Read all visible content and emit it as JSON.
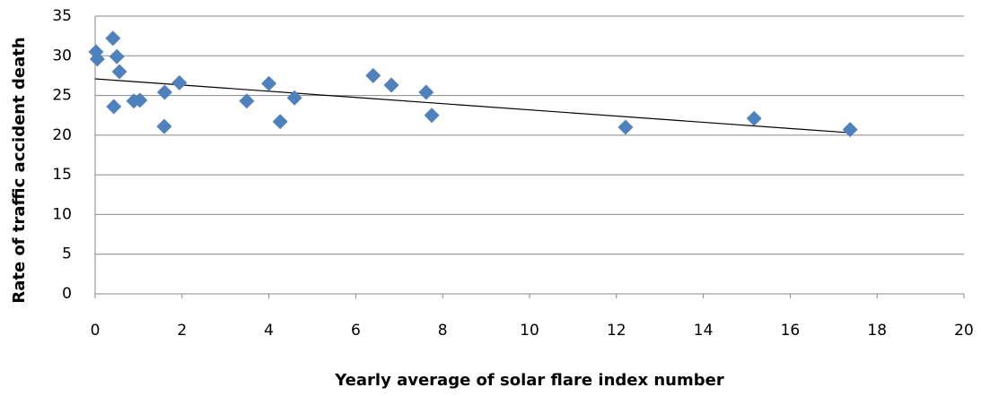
{
  "chart_data": {
    "type": "scatter",
    "x_label": "Yearly average of solar flare index number",
    "y_label": "Rate of traffic accident death",
    "series": [
      {
        "color": "#4f81bd",
        "x": [
          0.02,
          0.05,
          0.41,
          0.5,
          0.56,
          0.43,
          0.89,
          1.03,
          1.6,
          1.59,
          1.94,
          3.49,
          4.0,
          4.26,
          4.59,
          6.4,
          6.82,
          7.62,
          7.75,
          12.21,
          15.17,
          17.38
        ],
        "values": [
          30.5,
          29.6,
          32.2,
          29.9,
          28.0,
          23.6,
          24.3,
          24.4,
          25.4,
          21.1,
          26.6,
          24.3,
          26.5,
          21.7,
          24.7,
          27.5,
          26.3,
          25.4,
          22.5,
          21.0,
          22.1,
          20.7
        ]
      }
    ],
    "trendline": {
      "color": "#000000",
      "x": [
        0,
        17.38
      ],
      "values": [
        27.1,
        20.3
      ]
    },
    "xlim": [
      0,
      20
    ],
    "xticks": [
      0,
      2,
      4,
      6,
      8,
      10,
      12,
      14,
      16,
      18,
      20
    ],
    "ylim": [
      0,
      35
    ],
    "yticks": [
      0,
      5,
      10,
      15,
      20,
      25,
      30,
      35
    ],
    "grid": true
  }
}
